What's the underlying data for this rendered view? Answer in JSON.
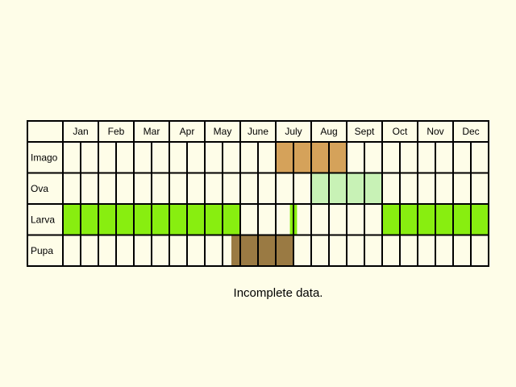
{
  "months": [
    "Jan",
    "Feb",
    "Mar",
    "Apr",
    "May",
    "June",
    "July",
    "Aug",
    "Sept",
    "Oct",
    "Nov",
    "Dec"
  ],
  "rows": [
    {
      "label": "Imago",
      "color": "#d5a25a",
      "ranges": [
        [
          6.0,
          8.0
        ]
      ]
    },
    {
      "label": "Ova",
      "color": "#c8f2b6",
      "ranges": [
        [
          7.0,
          9.0
        ]
      ]
    },
    {
      "label": "Larva",
      "color": "#88ee10",
      "ranges": [
        [
          0.0,
          5.0
        ],
        [
          6.4,
          6.6
        ],
        [
          9.0,
          12.0
        ]
      ]
    },
    {
      "label": "Pupa",
      "color": "#9a7a43",
      "ranges": [
        [
          4.75,
          6.5
        ]
      ]
    }
  ],
  "caption": "Incomplete data."
}
